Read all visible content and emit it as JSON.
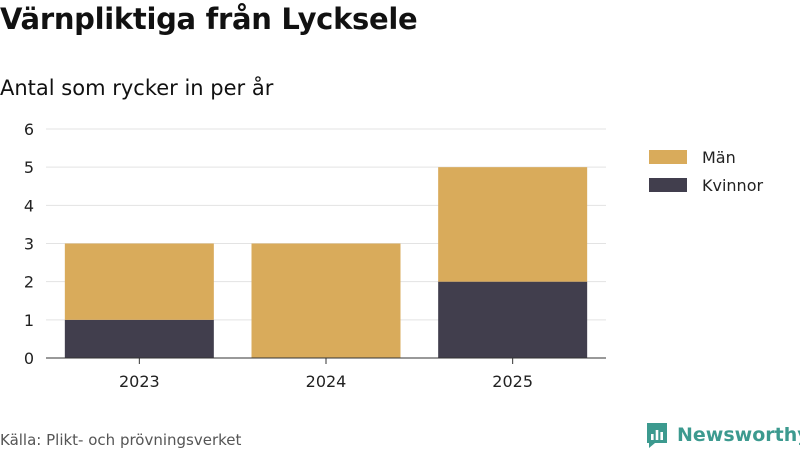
{
  "title": "Värnpliktiga från Lycksele",
  "subtitle": "Antal som rycker in per år",
  "source": "Källa: Plikt- och prövningsverket",
  "brand": {
    "name": "Newsworthy",
    "icon": "newsworthy-logo-icon",
    "color": "#3c9a8f"
  },
  "colors": {
    "grid": "#e3e3e3",
    "axis": "#333333",
    "background": "#ffffff"
  },
  "chart_data": {
    "type": "bar",
    "stacked": true,
    "categories": [
      "2023",
      "2024",
      "2025"
    ],
    "series": [
      {
        "name": "Kvinnor",
        "values": [
          1,
          0,
          2
        ],
        "color": "#413e4d"
      },
      {
        "name": "Män",
        "values": [
          2,
          3,
          3
        ],
        "color": "#d9ab5b"
      }
    ],
    "legend_order": [
      "Män",
      "Kvinnor"
    ],
    "ylim": [
      0,
      6
    ],
    "yticks": [
      0,
      1,
      2,
      3,
      4,
      5,
      6
    ],
    "grid": true,
    "legend_position": "right"
  }
}
